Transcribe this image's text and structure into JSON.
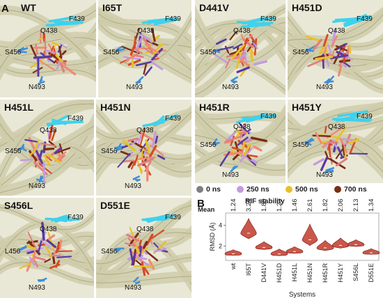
{
  "figure": {
    "panel_letter_a": "A",
    "panel_letter_b": "B"
  },
  "panels": [
    {
      "title": "WT",
      "residues": [
        "F439",
        "Q438",
        "S456",
        "N493"
      ]
    },
    {
      "title": "I65T",
      "residues": [
        "F439",
        "Q438",
        "S456",
        "N493"
      ]
    },
    {
      "title": "D441V",
      "residues": [
        "F439",
        "Q438",
        "S456",
        "N493"
      ]
    },
    {
      "title": "H451D",
      "residues": [
        "F439",
        "Q438",
        "S456",
        "N493"
      ]
    },
    {
      "title": "H451L",
      "residues": [
        "F439",
        "Q438",
        "S456",
        "N493"
      ]
    },
    {
      "title": "H451N",
      "residues": [
        "F439",
        "Q438",
        "S456",
        "N493"
      ]
    },
    {
      "title": "H451R",
      "residues": [
        "F439",
        "Q438",
        "S456",
        "N493"
      ]
    },
    {
      "title": "H451Y",
      "residues": [
        "F439",
        "Q438",
        "S456",
        "N493"
      ]
    },
    {
      "title": "S456L",
      "residues": [
        "F439",
        "Q438",
        "L456",
        "N493"
      ]
    },
    {
      "title": "D551E",
      "residues": [
        "F439",
        "Q438",
        "S456",
        "N493"
      ]
    }
  ],
  "legend": {
    "items": [
      {
        "label": "0 ns",
        "color": "#7f7f7f"
      },
      {
        "label": "250 ns",
        "color": "#c39be0"
      },
      {
        "label": "500 ns",
        "color": "#e8c02a"
      },
      {
        "label": "700 ns",
        "color": "#7b2d14"
      }
    ]
  },
  "chart_data": {
    "type": "violin",
    "title": "RIF stability",
    "mean_label": "Mean",
    "xlabel": "Systems",
    "ylabel": "RMSD (Å)",
    "ylim": [
      0.6,
      5.2
    ],
    "yticks": [
      2,
      4
    ],
    "categories": [
      "wt",
      "I65T",
      "D441V",
      "H451D",
      "H451L",
      "H451N",
      "H451R",
      "H451Y",
      "S456L",
      "D551E"
    ],
    "means": [
      "1.24",
      "3.24",
      "1.86",
      "1.23",
      "1.46",
      "2.61",
      "1.82",
      "2.06",
      "2.13",
      "1.34"
    ],
    "mean_values": [
      1.24,
      3.24,
      1.86,
      1.23,
      1.46,
      2.61,
      1.82,
      2.06,
      2.13,
      1.34
    ],
    "spread": [
      0.25,
      0.9,
      0.35,
      0.3,
      0.3,
      0.95,
      0.45,
      0.45,
      0.3,
      0.25
    ],
    "violin_color": "#c0392b"
  }
}
